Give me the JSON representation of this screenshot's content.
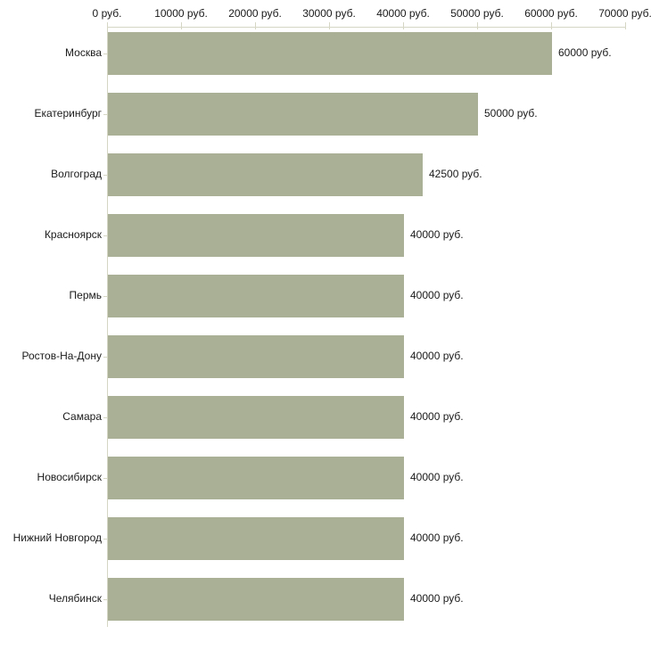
{
  "chart_data": {
    "type": "bar",
    "orientation": "horizontal",
    "title": "",
    "xlabel": "",
    "ylabel": "",
    "grid": false,
    "legend": false,
    "xlim": [
      0,
      70000
    ],
    "x_ticks": [
      0,
      10000,
      20000,
      30000,
      40000,
      50000,
      60000,
      70000
    ],
    "x_tick_labels": [
      "0 руб.",
      "10000 руб.",
      "20000 руб.",
      "30000 руб.",
      "40000 руб.",
      "50000 руб.",
      "60000 руб.",
      "70000 руб."
    ],
    "categories": [
      "Москва",
      "Екатеринбург",
      "Волгоград",
      "Красноярск",
      "Пермь",
      "Ростов-На-Дону",
      "Самара",
      "Новосибирск",
      "Нижний Новгород",
      "Челябинск"
    ],
    "values": [
      60000,
      50000,
      42500,
      40000,
      40000,
      40000,
      40000,
      40000,
      40000,
      40000
    ],
    "value_labels": [
      "60000 руб.",
      "50000 руб.",
      "42500 руб.",
      "40000 руб.",
      "40000 руб.",
      "40000 руб.",
      "40000 руб.",
      "40000 руб.",
      "40000 руб.",
      "40000 руб."
    ],
    "unit": "руб.",
    "colors": {
      "bar": "#a9b096",
      "axis": "#d6d6c4",
      "text": "#1a1a1a",
      "background": "#ffffff"
    }
  }
}
